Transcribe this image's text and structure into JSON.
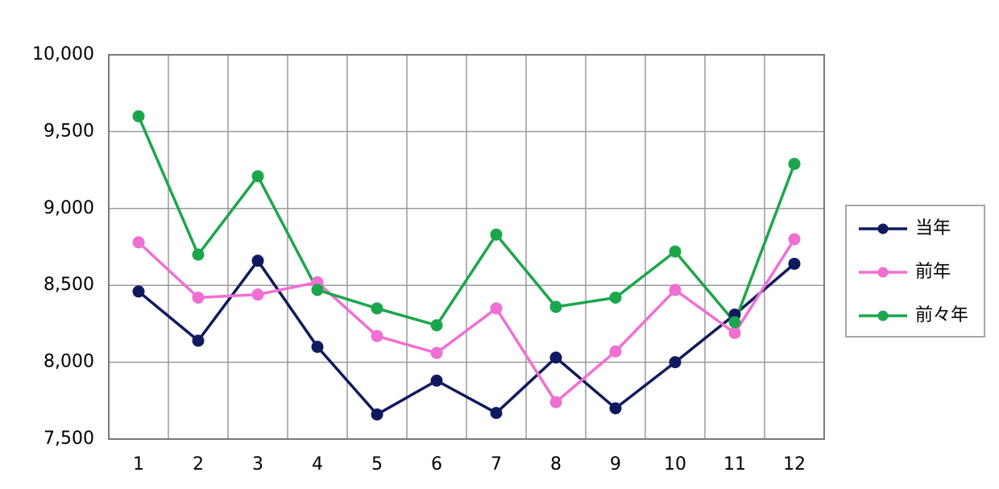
{
  "chart_data": {
    "type": "line",
    "categories": [
      "1",
      "2",
      "3",
      "4",
      "5",
      "6",
      "7",
      "8",
      "9",
      "10",
      "11",
      "12"
    ],
    "series": [
      {
        "name": "当年",
        "color": "#0f1a5e",
        "values": [
          8460,
          8140,
          8660,
          8100,
          7660,
          7880,
          7670,
          8030,
          7700,
          8000,
          8310,
          8640
        ]
      },
      {
        "name": "前年",
        "color": "#f06fd3",
        "values": [
          8780,
          8420,
          8440,
          8520,
          8170,
          8060,
          8350,
          7740,
          8070,
          8470,
          8190,
          8800
        ]
      },
      {
        "name": "前々年",
        "color": "#1ca64b",
        "values": [
          9600,
          8700,
          9210,
          8470,
          8350,
          8240,
          8830,
          8360,
          8420,
          8720,
          8260,
          9290
        ]
      }
    ],
    "ylim": [
      7500,
      10000
    ],
    "yticks": [
      {
        "value": 7500,
        "label": "7,500"
      },
      {
        "value": 8000,
        "label": "8,000"
      },
      {
        "value": 8500,
        "label": "8,500"
      },
      {
        "value": 9000,
        "label": "9,000"
      },
      {
        "value": 9500,
        "label": "9,500"
      },
      {
        "value": 10000,
        "label": "10,000"
      }
    ],
    "grid": true,
    "legend": "right"
  }
}
